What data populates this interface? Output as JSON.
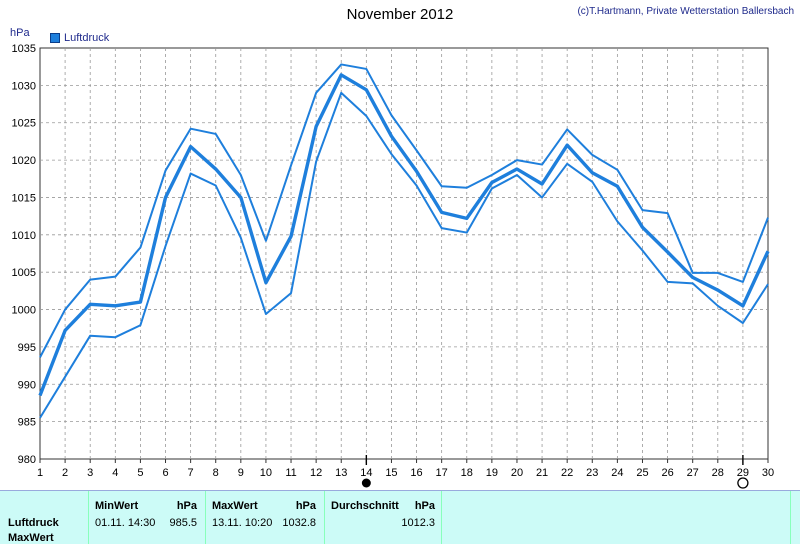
{
  "header": {
    "title": "November 2012",
    "credit": "(c)T.Hartmann, Private Wetterstation Ballersbach",
    "unit": "hPa",
    "legend_label": "Luftdruck"
  },
  "chart_data": {
    "type": "line",
    "title": "November 2012",
    "ylabel": "hPa",
    "ylim": [
      980,
      1035
    ],
    "yticks": [
      980,
      985,
      990,
      995,
      1000,
      1005,
      1010,
      1015,
      1020,
      1025,
      1030,
      1035
    ],
    "x": [
      1,
      2,
      3,
      4,
      5,
      6,
      7,
      8,
      9,
      10,
      11,
      12,
      13,
      14,
      15,
      16,
      17,
      18,
      19,
      20,
      21,
      22,
      23,
      24,
      25,
      26,
      27,
      28,
      29,
      30
    ],
    "grid": true,
    "colors": {
      "line": "#1e7fdc",
      "grid": "#999999"
    },
    "markers": [
      {
        "day": 14,
        "symbol": "filled-circle"
      },
      {
        "day": 29,
        "symbol": "open-circle"
      }
    ],
    "series": [
      {
        "name": "Luftdruck",
        "values": [
          988.5,
          997.2,
          1000.7,
          1000.5,
          1001.0,
          1015.0,
          1021.8,
          1018.8,
          1015.0,
          1003.6,
          1009.8,
          1024.5,
          1031.4,
          1029.4,
          1023.2,
          1018.5,
          1013.0,
          1012.2,
          1017.0,
          1018.8,
          1016.8,
          1022.0,
          1018.3,
          1016.5,
          1011.0,
          1007.7,
          1004.3,
          1002.6,
          1000.5,
          1007.8
        ]
      },
      {
        "values": [
          993.6,
          1000.0,
          1004.0,
          1004.4,
          1008.3,
          1018.6,
          1024.2,
          1023.5,
          1018.0,
          1009.2,
          1019.3,
          1029.0,
          1032.8,
          1032.2,
          1026.0,
          1021.3,
          1016.5,
          1016.3,
          1018.0,
          1020.0,
          1019.4,
          1024.1,
          1020.7,
          1018.7,
          1013.3,
          1012.9,
          1004.9,
          1004.9,
          1003.7,
          1012.3
        ]
      },
      {
        "values": [
          985.5,
          991.0,
          996.5,
          996.3,
          997.9,
          1008.5,
          1018.2,
          1016.6,
          1009.6,
          999.4,
          1002.2,
          1019.8,
          1029.0,
          1025.9,
          1020.8,
          1016.6,
          1010.9,
          1010.3,
          1016.2,
          1018.0,
          1015.0,
          1019.5,
          1017.1,
          1011.8,
          1007.9,
          1003.7,
          1003.5,
          1000.5,
          998.2,
          1003.4
        ]
      }
    ]
  },
  "stats": {
    "min_header": "MinWert",
    "max_header": "MaxWert",
    "avg_header": "Durchschnitt",
    "unit_header": "hPa",
    "row1_label": "Luftdruck",
    "row2_label": "MaxWert",
    "min_time": "01.11.  14:30",
    "min_value": "985.5",
    "max_time": "13.11.  10:20",
    "max_value": "1032.8",
    "avg_value": "1012.3"
  }
}
